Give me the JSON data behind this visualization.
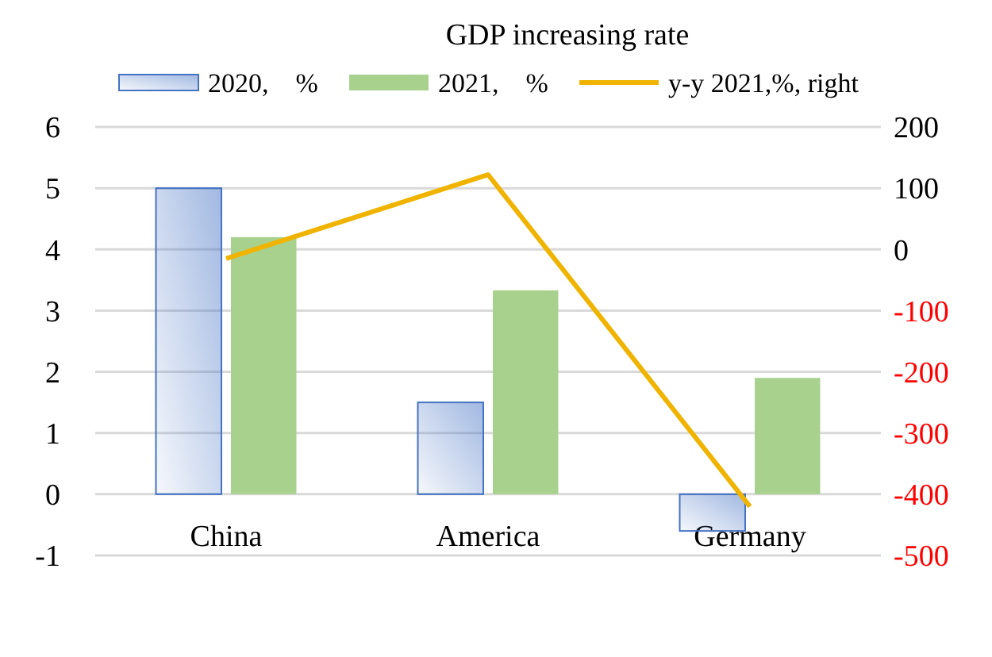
{
  "chart_data": {
    "type": "bar",
    "title": "GDP increasing rate",
    "categories": [
      "China",
      "America",
      "Germany"
    ],
    "series": [
      {
        "name": "2020,　%",
        "color": "#4472c4",
        "values": [
          5,
          1.5,
          -0.6
        ]
      },
      {
        "name": "2021,　%",
        "color": "#a9d18e",
        "values": [
          4.2,
          3.33,
          1.9
        ]
      },
      {
        "name": "y-y 2021,%, right",
        "type": "line",
        "axis": "y2",
        "color": "#f0b400",
        "values": [
          -15,
          122,
          -420
        ]
      }
    ],
    "ylim": [
      -1,
      6
    ],
    "yticks": [
      -1,
      0,
      1,
      2,
      3,
      4,
      5,
      6
    ],
    "y2lim": [
      -500,
      200
    ],
    "y2ticks": [
      -500,
      -400,
      -300,
      -200,
      -100,
      0,
      100,
      200
    ],
    "grid": true,
    "legend": "top",
    "marker": "none"
  }
}
